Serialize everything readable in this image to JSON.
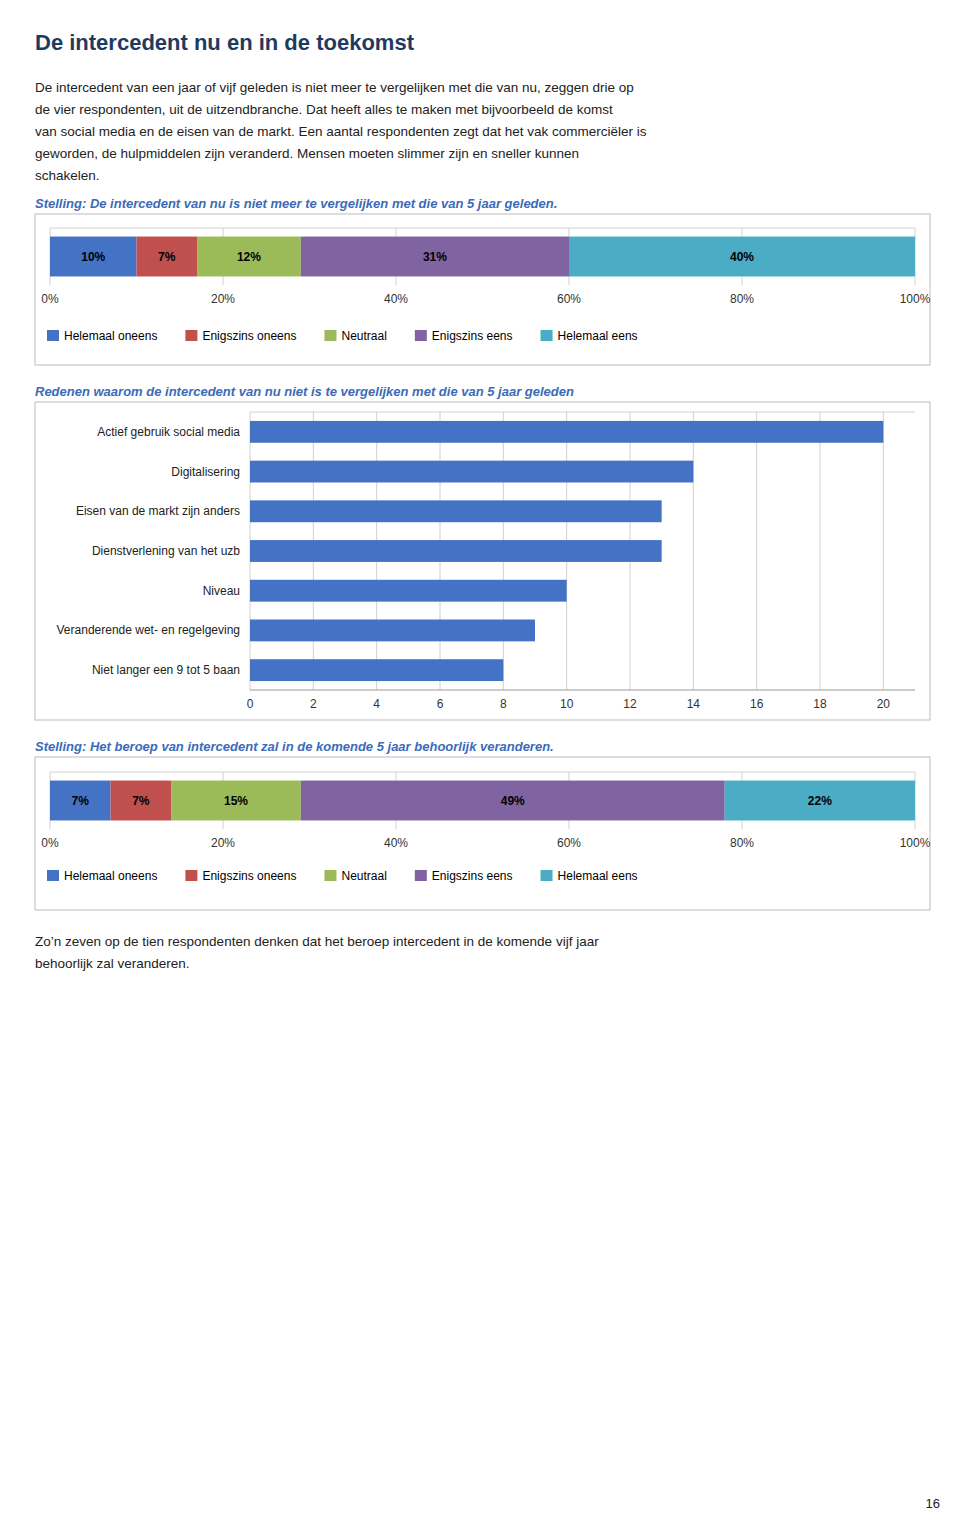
{
  "title": "De intercedent nu en in de toekomst",
  "intro_lines": [
    "De intercedent van een jaar of vijf geleden is niet meer te vergelijken met die van nu, zeggen drie op",
    "de vier respondenten, uit de uitzendbranche. Dat heeft alles te maken met bijvoorbeeld de komst",
    "van social media en de eisen van de markt. Een aantal respondenten zegt dat het vak commerciëler is",
    "geworden, de hulpmiddelen zijn veranderd. Mensen moeten slimmer zijn en sneller kunnen",
    "schakelen."
  ],
  "chart_data": [
    {
      "type": "bar",
      "title": "Stelling: De intercedent van nu is niet meer te vergelijken met die van 5 jaar geleden.",
      "orientation": "horizontal",
      "stacked": true,
      "categories": [
        null
      ],
      "series": [
        {
          "name": "Helemaal oneens",
          "color": "#4472C4",
          "values": [
            10
          ],
          "value_labels": [
            "10%"
          ]
        },
        {
          "name": "Enigszins oneens",
          "color": "#C0504D",
          "values": [
            7
          ],
          "value_labels": [
            "7%"
          ]
        },
        {
          "name": "Neutraal",
          "color": "#9BBB59",
          "values": [
            12
          ],
          "value_labels": [
            "12%"
          ]
        },
        {
          "name": "Enigszins eens",
          "color": "#8064A2",
          "values": [
            31
          ],
          "value_labels": [
            "31%"
          ]
        },
        {
          "name": "Helemaal eens",
          "color": "#4BACC6",
          "values": [
            40
          ],
          "value_labels": [
            "40%"
          ]
        }
      ],
      "xlim": [
        0,
        100
      ],
      "xticks": [
        {
          "value": 0,
          "label": "0%"
        },
        {
          "value": 20,
          "label": "20%"
        },
        {
          "value": 40,
          "label": "40%"
        },
        {
          "value": 60,
          "label": "60%"
        },
        {
          "value": 80,
          "label": "80%"
        },
        {
          "value": 100,
          "label": "100%"
        }
      ],
      "grid": true,
      "legend": "bottom",
      "data_labels": true,
      "tick_labels": "x"
    },
    {
      "type": "bar",
      "title": "Redenen waarom de intercedent van nu niet is te vergelijken met die van 5 jaar geleden",
      "orientation": "horizontal",
      "categories": [
        "Actief gebruik social media",
        "Digitalisering",
        "Eisen van de markt zijn anders",
        "Dienstverlening van het uzb",
        "Niveau",
        "Veranderende wet- en regelgeving",
        "Niet langer een 9 tot 5 baan"
      ],
      "values": [
        20,
        14,
        13,
        13,
        10,
        9,
        8
      ],
      "color": "#4472C4",
      "xlim": [
        0,
        21
      ],
      "xticks": [
        0,
        2,
        4,
        6,
        8,
        10,
        12,
        14,
        16,
        18,
        20
      ],
      "grid": true
    },
    {
      "type": "bar",
      "title": "Stelling: Het beroep van intercedent zal in de komende 5 jaar behoorlijk veranderen.",
      "orientation": "horizontal",
      "stacked": true,
      "categories": [
        null
      ],
      "series": [
        {
          "name": "Helemaal oneens",
          "color": "#4472C4",
          "values": [
            7
          ],
          "value_labels": [
            "7%"
          ]
        },
        {
          "name": "Enigszins oneens",
          "color": "#C0504D",
          "values": [
            7
          ],
          "value_labels": [
            "7%"
          ]
        },
        {
          "name": "Neutraal",
          "color": "#9BBB59",
          "values": [
            15
          ],
          "value_labels": [
            "15%"
          ]
        },
        {
          "name": "Enigszins eens",
          "color": "#8064A2",
          "values": [
            49
          ],
          "value_labels": [
            "49%"
          ]
        },
        {
          "name": "Helemaal eens",
          "color": "#4BACC6",
          "values": [
            22
          ],
          "value_labels": [
            "22%"
          ]
        }
      ],
      "xlim": [
        0,
        100
      ],
      "xticks": [
        {
          "value": 0,
          "label": "0%"
        },
        {
          "value": 20,
          "label": "20%"
        },
        {
          "value": 40,
          "label": "40%"
        },
        {
          "value": 60,
          "label": "60%"
        },
        {
          "value": 80,
          "label": "80%"
        },
        {
          "value": 100,
          "label": "100%"
        }
      ],
      "grid": true,
      "legend": "bottom",
      "data_labels": true,
      "tick_labels": "x"
    }
  ],
  "footer_lines": [
    "Zo’n zeven op de tien respondenten denken dat het beroep intercedent in de komende vijf jaar",
    "behoorlijk zal veranderen."
  ],
  "page_number": "16"
}
